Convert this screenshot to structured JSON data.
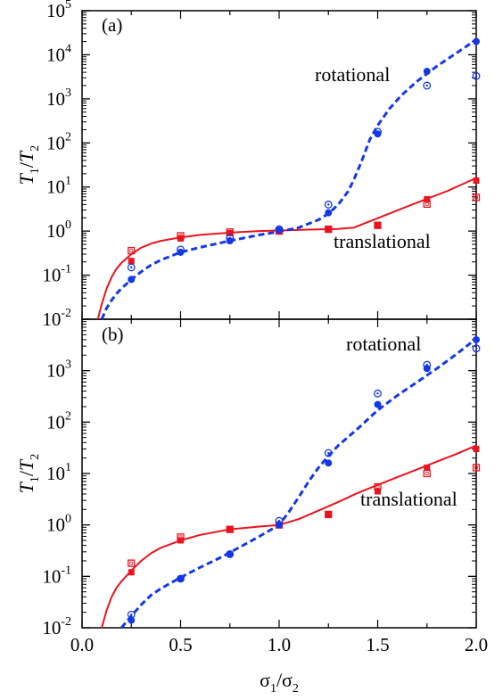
{
  "colors": {
    "translational": "#e8141e",
    "rotational": "#1438e6",
    "axes": "#000000"
  },
  "axes": {
    "xlabel": {
      "main": "σ",
      "sub1": "1",
      "sep": "/σ",
      "sub2": "2"
    },
    "ylabel": {
      "main": "T",
      "sub1": "1",
      "sep": "/",
      "main2": "T",
      "sub2": "2"
    },
    "x_ticks": [
      "0.0",
      "0.5",
      "1.0",
      "1.5",
      "2.0"
    ]
  },
  "chart_data": [
    {
      "type": "scatter",
      "panel": "(a)",
      "xlim": [
        0,
        2
      ],
      "ylim": [
        0.01,
        100000
      ],
      "yscale": "log",
      "y_ticks": [
        {
          "base": "10",
          "exp": "-2"
        },
        {
          "base": "10",
          "exp": "-1"
        },
        {
          "base": "10",
          "exp": "0"
        },
        {
          "base": "10",
          "exp": "1"
        },
        {
          "base": "10",
          "exp": "2"
        },
        {
          "base": "10",
          "exp": "3"
        },
        {
          "base": "10",
          "exp": "4"
        },
        {
          "base": "10",
          "exp": "5"
        }
      ],
      "annotations": [
        "rotational",
        "translational"
      ],
      "series": [
        {
          "key": "trans_filled",
          "marker": "filled-square",
          "color": "translational",
          "x": [
            0.25,
            0.5,
            0.75,
            1.0,
            1.25,
            1.5,
            1.75,
            2.0
          ],
          "y": [
            0.21,
            0.68,
            0.9,
            1.0,
            1.1,
            1.35,
            5.3,
            14.0
          ]
        },
        {
          "key": "trans_open",
          "marker": "open-square",
          "color": "translational",
          "x": [
            0.25,
            0.5,
            0.75,
            1.0,
            1.25,
            1.5,
            1.75,
            2.0
          ],
          "y": [
            0.36,
            0.78,
            0.95,
            1.0,
            1.1,
            1.35,
            4.1,
            5.8
          ]
        },
        {
          "key": "rot_filled",
          "marker": "filled-circle",
          "color": "rotational",
          "x": [
            0.25,
            0.5,
            0.75,
            1.0,
            1.25,
            1.5,
            1.75,
            2.0
          ],
          "y": [
            0.08,
            0.33,
            0.6,
            1.05,
            2.6,
            160,
            4200,
            20000
          ]
        },
        {
          "key": "rot_open",
          "marker": "open-circle",
          "color": "rotational",
          "x": [
            0.25,
            0.5,
            0.75,
            1.0,
            1.25,
            1.5,
            1.75,
            2.0
          ],
          "y": [
            0.15,
            0.38,
            0.7,
            1.1,
            4.0,
            180,
            2000,
            3300
          ]
        }
      ],
      "curves": [
        {
          "key": "trans_fit",
          "style": "solid",
          "color": "translational",
          "x": [
            0.08,
            0.1,
            0.125,
            0.15,
            0.175,
            0.2,
            0.25,
            0.3,
            0.35,
            0.4,
            0.5,
            0.6,
            0.75,
            0.9,
            1.0,
            1.15,
            1.3,
            1.38,
            1.45,
            1.55,
            1.65,
            1.75,
            1.85,
            2.0
          ],
          "y": [
            0.01,
            0.022,
            0.05,
            0.09,
            0.14,
            0.19,
            0.3,
            0.42,
            0.52,
            0.6,
            0.72,
            0.82,
            0.92,
            1.0,
            1.03,
            1.08,
            1.12,
            1.2,
            1.6,
            2.4,
            3.6,
            5.4,
            8.0,
            16.0
          ]
        },
        {
          "key": "rot_fit",
          "style": "dashed",
          "color": "rotational",
          "x": [
            0.1,
            0.125,
            0.15,
            0.175,
            0.2,
            0.25,
            0.3,
            0.35,
            0.4,
            0.5,
            0.6,
            0.75,
            0.9,
            1.0,
            1.1,
            1.2,
            1.25,
            1.3,
            1.35,
            1.38,
            1.42,
            1.46,
            1.5,
            1.56,
            1.62,
            1.7,
            1.8,
            1.9,
            2.0
          ],
          "y": [
            0.01,
            0.018,
            0.027,
            0.038,
            0.05,
            0.08,
            0.12,
            0.17,
            0.22,
            0.33,
            0.43,
            0.6,
            0.82,
            0.97,
            1.2,
            1.8,
            2.5,
            4.0,
            8.0,
            15.0,
            40.0,
            120.0,
            250.0,
            600.0,
            1200.0,
            2500.0,
            5500.0,
            11000.0,
            22000.0
          ]
        }
      ]
    },
    {
      "type": "scatter",
      "panel": "(b)",
      "xlim": [
        0,
        2
      ],
      "ylim": [
        0.01,
        10000
      ],
      "yscale": "log",
      "y_ticks": [
        {
          "base": "10",
          "exp": "-2"
        },
        {
          "base": "10",
          "exp": "-1"
        },
        {
          "base": "10",
          "exp": "0"
        },
        {
          "base": "10",
          "exp": "1"
        },
        {
          "base": "10",
          "exp": "2"
        },
        {
          "base": "10",
          "exp": "3"
        }
      ],
      "annotations": [
        "rotational",
        "translational"
      ],
      "series": [
        {
          "key": "trans_filled",
          "marker": "filled-square",
          "color": "translational",
          "x": [
            0.25,
            0.5,
            0.75,
            1.0,
            1.25,
            1.5,
            1.75,
            2.0
          ],
          "y": [
            0.12,
            0.5,
            0.82,
            1.0,
            1.6,
            4.5,
            13.0,
            30.0
          ]
        },
        {
          "key": "trans_open",
          "marker": "open-square",
          "color": "translational",
          "x": [
            0.25,
            0.5,
            0.75,
            1.0,
            1.25,
            1.5,
            1.75,
            2.0
          ],
          "y": [
            0.18,
            0.58,
            0.82,
            1.0,
            1.6,
            5.5,
            10.0,
            13.0
          ]
        },
        {
          "key": "rot_filled",
          "marker": "filled-circle",
          "color": "rotational",
          "x": [
            0.25,
            0.5,
            0.75,
            1.0,
            1.25,
            1.5,
            1.75,
            2.0
          ],
          "y": [
            0.014,
            0.09,
            0.27,
            1.0,
            16.0,
            220.0,
            1100.0,
            4000.0
          ]
        },
        {
          "key": "rot_open",
          "marker": "open-circle",
          "color": "rotational",
          "x": [
            0.25,
            0.5,
            0.75,
            1.0,
            1.25,
            1.5,
            1.75,
            2.0
          ],
          "y": [
            0.018,
            0.09,
            0.27,
            1.2,
            25.0,
            360.0,
            1300.0,
            2700.0
          ]
        }
      ],
      "curves": [
        {
          "key": "trans_fit",
          "style": "solid",
          "color": "translational",
          "x": [
            0.1,
            0.125,
            0.15,
            0.175,
            0.2,
            0.25,
            0.3,
            0.35,
            0.4,
            0.5,
            0.6,
            0.75,
            0.9,
            1.0,
            1.1,
            1.2,
            1.3,
            1.4,
            1.5,
            1.6,
            1.7,
            1.8,
            1.9,
            2.0
          ],
          "y": [
            0.01,
            0.022,
            0.04,
            0.06,
            0.08,
            0.13,
            0.2,
            0.28,
            0.36,
            0.5,
            0.64,
            0.82,
            0.93,
            1.0,
            1.3,
            1.9,
            2.8,
            4.2,
            6.0,
            8.5,
            12.0,
            17.0,
            24.0,
            35.0
          ]
        },
        {
          "key": "rot_fit",
          "style": "dashed",
          "color": "rotational",
          "x": [
            0.2,
            0.25,
            0.3,
            0.35,
            0.4,
            0.5,
            0.6,
            0.7,
            0.8,
            0.9,
            1.0,
            1.05,
            1.1,
            1.15,
            1.2,
            1.25,
            1.3,
            1.4,
            1.5,
            1.6,
            1.7,
            1.8,
            1.9,
            2.0
          ],
          "y": [
            0.01,
            0.017,
            0.028,
            0.043,
            0.058,
            0.095,
            0.15,
            0.23,
            0.37,
            0.6,
            1.0,
            1.8,
            3.5,
            7.0,
            13.0,
            22.0,
            35.0,
            75.0,
            170.0,
            330.0,
            600.0,
            1100.0,
            2100.0,
            4200.0
          ]
        }
      ]
    }
  ]
}
